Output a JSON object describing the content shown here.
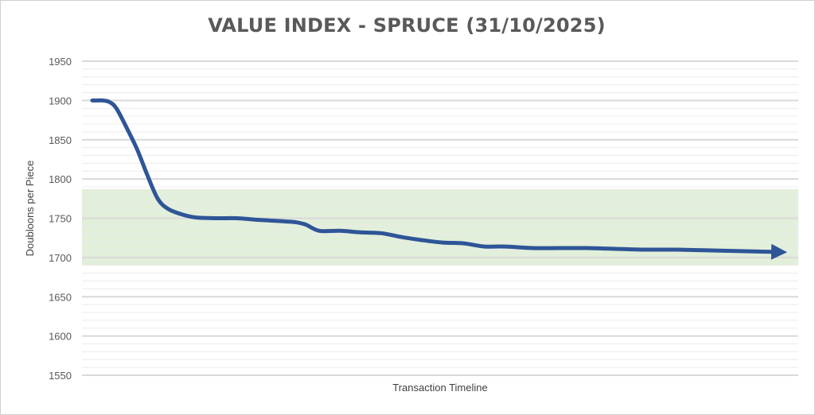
{
  "chart_data": {
    "type": "line",
    "title": "VALUE INDEX - SPRUCE (31/10/2025)",
    "xlabel": "Transaction Timeline",
    "ylabel": "Doubloons per Piece",
    "ylim": [
      1550,
      1950
    ],
    "yticks": [
      1950,
      1900,
      1850,
      1800,
      1750,
      1700,
      1650,
      1600,
      1550
    ],
    "minor_grid_step": 10,
    "band": {
      "from": 1690,
      "to": 1787,
      "color": "#e2efda"
    },
    "line_color": "#2e5597",
    "series": [
      {
        "x": [
          0,
          0.5,
          1.5,
          2.5,
          3.5,
          5,
          6.5,
          8,
          9.5,
          11,
          13,
          15,
          18,
          21,
          24,
          26,
          28,
          29.5,
          31,
          33,
          36,
          39,
          42,
          45,
          48,
          51,
          54,
          57,
          60,
          64,
          68,
          72,
          76,
          80,
          85,
          90,
          95,
          100
        ],
        "values": [
          1900,
          1900,
          1900,
          1898,
          1890,
          1865,
          1838,
          1805,
          1775,
          1762,
          1755,
          1751,
          1750,
          1750,
          1748,
          1747,
          1746,
          1745,
          1742,
          1734,
          1734,
          1732,
          1731,
          1726,
          1722,
          1719,
          1718,
          1714,
          1714,
          1712,
          1712,
          1712,
          1711,
          1710,
          1710,
          1709,
          1708,
          1707
        ]
      }
    ]
  }
}
